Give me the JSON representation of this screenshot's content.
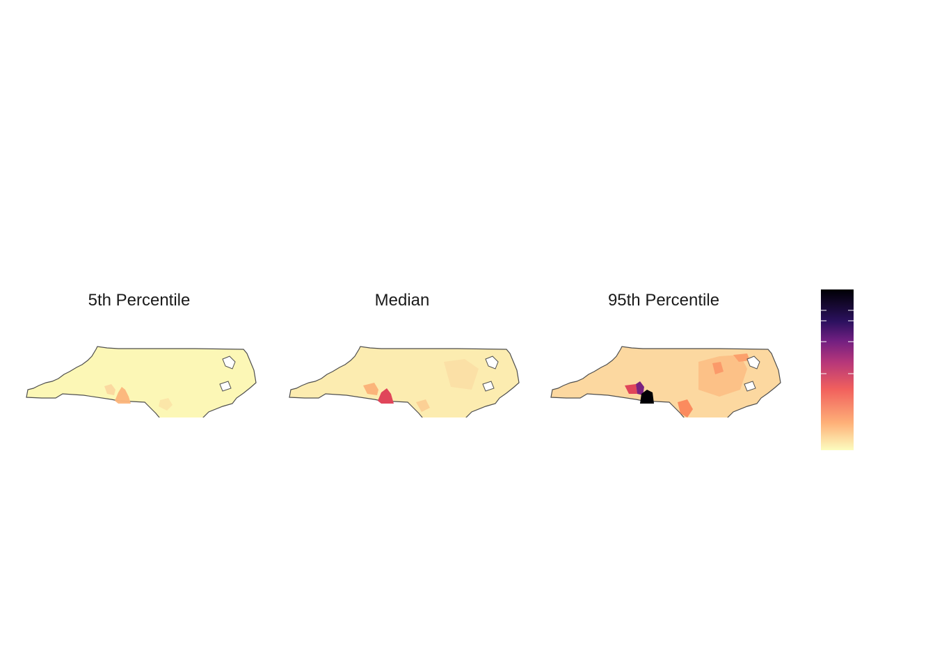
{
  "panels": [
    {
      "title": "5th Percentile"
    },
    {
      "title": "Median"
    },
    {
      "title": "95th Percentile"
    }
  ],
  "colors": {
    "scale": [
      "#fcfdbf",
      "#feb078",
      "#f1605d",
      "#b5367a",
      "#721f81",
      "#2c115f",
      "#000004"
    ],
    "outline": "#4d4d4d",
    "tick": "#ffffff"
  }
}
